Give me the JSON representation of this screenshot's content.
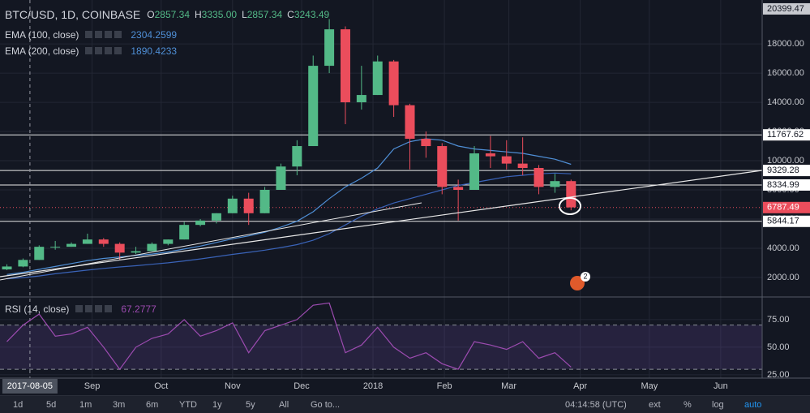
{
  "chart_data": [
    {
      "type": "candlestick",
      "title": "BTC/USD, 1D, COINBASE",
      "ohlc_legend": [
        {
          "label": "O",
          "value": "2857.34"
        },
        {
          "label": "H",
          "value": "3335.00"
        },
        {
          "label": "L",
          "value": "2857.34"
        },
        {
          "label": "C",
          "value": "3243.49"
        }
      ],
      "x": [
        "2017-07-26",
        "2017-08-02",
        "2017-08-09",
        "2017-08-16",
        "2017-08-23",
        "2017-08-30",
        "2017-09-06",
        "2017-09-13",
        "2017-09-20",
        "2017-09-27",
        "2017-10-04",
        "2017-10-11",
        "2017-10-18",
        "2017-10-25",
        "2017-11-01",
        "2017-11-08",
        "2017-11-15",
        "2017-11-22",
        "2017-11-29",
        "2017-12-06",
        "2017-12-13",
        "2017-12-20",
        "2017-12-27",
        "2018-01-03",
        "2018-01-10",
        "2018-01-17",
        "2018-01-24",
        "2018-01-31",
        "2018-02-07",
        "2018-02-14",
        "2018-02-21",
        "2018-02-28",
        "2018-03-07",
        "2018-03-14",
        "2018-03-21",
        "2018-03-28"
      ],
      "open": [
        2550,
        2750,
        3200,
        4100,
        4100,
        4300,
        4600,
        4300,
        3700,
        3800,
        4300,
        4600,
        5600,
        5900,
        6400,
        7400,
        6400,
        8000,
        9600,
        11000,
        16500,
        19000,
        14000,
        14500,
        16800,
        13800,
        11500,
        11000,
        8200,
        8000,
        10500,
        10300,
        9800,
        9500,
        8200,
        8600
      ],
      "high": [
        2900,
        3300,
        4200,
        4500,
        4400,
        5000,
        4700,
        4400,
        4100,
        4400,
        4600,
        5800,
        6000,
        6400,
        7600,
        7800,
        8200,
        9800,
        11400,
        17200,
        19700,
        19200,
        16500,
        17200,
        16900,
        13900,
        12000,
        11200,
        8700,
        11000,
        11700,
        11400,
        11600,
        9700,
        9100,
        8700
      ],
      "low": [
        2500,
        2700,
        3200,
        3900,
        4100,
        4300,
        4100,
        3200,
        3600,
        3800,
        4200,
        4600,
        5500,
        5700,
        6400,
        5600,
        6400,
        8000,
        9000,
        11000,
        16000,
        12500,
        13500,
        14500,
        13000,
        9400,
        10200,
        7700,
        5900,
        8000,
        9500,
        9400,
        9000,
        7700,
        7800,
        6600
      ],
      "close": [
        2750,
        3200,
        4100,
        4100,
        4300,
        4600,
        4300,
        3700,
        3800,
        4300,
        4600,
        5600,
        5900,
        6400,
        7400,
        6400,
        8000,
        9600,
        11000,
        16500,
        19000,
        14000,
        14500,
        16800,
        13800,
        11500,
        11000,
        8200,
        8000,
        10500,
        10300,
        9800,
        9500,
        8200,
        8600,
        6800
      ],
      "up_color": "#53b987",
      "down_color": "#eb4d5c",
      "series": [
        {
          "name": "EMA (100, close)",
          "legend_value": "2304.2599",
          "color": "#4f8fd6",
          "values": [
            2200,
            2350,
            2550,
            2750,
            2950,
            3150,
            3300,
            3400,
            3500,
            3600,
            3750,
            3950,
            4150,
            4400,
            4650,
            4850,
            5100,
            5450,
            5850,
            6500,
            7400,
            8200,
            8800,
            9500,
            10800,
            11300,
            11500,
            11400,
            11000,
            10800,
            10700,
            10600,
            10500,
            10300,
            10100,
            9750
          ]
        },
        {
          "name": "EMA (200, close)",
          "legend_value": "1890.4233",
          "color": "#3a63b8",
          "values": [
            1900,
            1990,
            2100,
            2250,
            2380,
            2500,
            2620,
            2720,
            2800,
            2900,
            3000,
            3130,
            3270,
            3420,
            3580,
            3720,
            3870,
            4050,
            4250,
            4550,
            5000,
            5600,
            6200,
            6700,
            7100,
            7400,
            7700,
            8000,
            8300,
            8500,
            8700,
            8900,
            9000,
            9100,
            9150,
            9100
          ]
        }
      ],
      "xlim": [
        "2017-07-23",
        "2018-06-19"
      ],
      "xticks": [
        {
          "value": "2017-09-01",
          "label": "Sep"
        },
        {
          "value": "2017-10-01",
          "label": "Oct"
        },
        {
          "value": "2017-11-01",
          "label": "Nov"
        },
        {
          "value": "2017-12-01",
          "label": "Dec"
        },
        {
          "value": "2018-01-01",
          "label": "2018"
        },
        {
          "value": "2018-02-01",
          "label": "Feb"
        },
        {
          "value": "2018-03-01",
          "label": "Mar"
        },
        {
          "value": "2018-04-01",
          "label": "Apr"
        },
        {
          "value": "2018-05-01",
          "label": "May"
        },
        {
          "value": "2018-06-01",
          "label": "Jun"
        }
      ],
      "crosshair": "2017-08-05",
      "ylim": [
        662,
        21008
      ],
      "yticks": [
        {
          "value": 2000,
          "label": "2000.00"
        },
        {
          "value": 4000,
          "label": "4000.00"
        },
        {
          "value": 6000,
          "label": "6000.00"
        },
        {
          "value": 8000,
          "label": "8000.00"
        },
        {
          "value": 10000,
          "label": "10000.00"
        },
        {
          "value": 12000,
          "label": "12000.00"
        },
        {
          "value": 14000,
          "label": "14000.00"
        },
        {
          "value": 16000,
          "label": "16000.00"
        },
        {
          "value": 18000,
          "label": "18000.00"
        }
      ],
      "levels": [
        11767.62,
        9329.28,
        8334.99,
        5844.17
      ],
      "last_price": 6787.49,
      "top_price": 20399.47,
      "event_badge": "2"
    },
    {
      "type": "line",
      "title": "RSI (14, close)",
      "legend_value": "67.2777",
      "color": "#9c4bb0",
      "x": [
        "2017-07-26",
        "2017-08-02",
        "2017-08-09",
        "2017-08-16",
        "2017-08-23",
        "2017-08-30",
        "2017-09-06",
        "2017-09-13",
        "2017-09-20",
        "2017-09-27",
        "2017-10-04",
        "2017-10-11",
        "2017-10-18",
        "2017-10-25",
        "2017-11-01",
        "2017-11-08",
        "2017-11-15",
        "2017-11-22",
        "2017-11-29",
        "2017-12-06",
        "2017-12-13",
        "2017-12-20",
        "2017-12-27",
        "2018-01-03",
        "2018-01-10",
        "2018-01-17",
        "2018-01-24",
        "2018-01-31",
        "2018-02-07",
        "2018-02-14",
        "2018-02-21",
        "2018-02-28",
        "2018-03-07",
        "2018-03-14",
        "2018-03-21",
        "2018-03-28"
      ],
      "values": [
        55,
        70,
        80,
        60,
        62,
        68,
        50,
        30,
        50,
        58,
        62,
        75,
        60,
        65,
        72,
        45,
        65,
        70,
        75,
        88,
        90,
        45,
        52,
        68,
        50,
        40,
        45,
        35,
        30,
        55,
        52,
        48,
        55,
        40,
        45,
        32
      ],
      "band": [
        30,
        70
      ],
      "ylim": [
        22,
        94
      ],
      "yticks": [
        {
          "value": 25,
          "label": "25.00"
        },
        {
          "value": 50,
          "label": "50.00"
        },
        {
          "value": 75,
          "label": "75.00"
        }
      ]
    }
  ],
  "toolbar": {
    "ranges": [
      "1d",
      "5d",
      "1m",
      "3m",
      "6m",
      "YTD",
      "1y",
      "5y",
      "All"
    ],
    "goto": "Go to...",
    "clock": "04:14:58 (UTC)",
    "options": [
      "ext",
      "%",
      "log",
      "auto"
    ]
  }
}
